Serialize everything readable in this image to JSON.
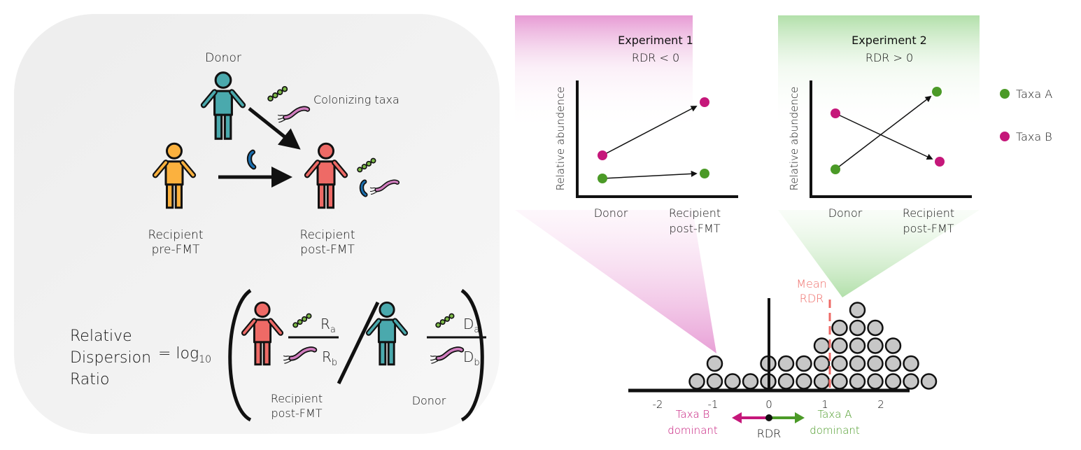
{
  "panel_left": {
    "donor_label": "Donor",
    "colonizing_label": "Colonizing taxa",
    "recipient_pre_line1": "Recipient",
    "recipient_pre_line2": "pre-FMT",
    "recipient_post_line1": "Recipient",
    "recipient_post_line2": "post-FMT"
  },
  "formula": {
    "lhs_line1": "Relative",
    "lhs_line2": "Dispersion",
    "lhs_line3": "Ratio",
    "equals_log": "= log",
    "log_base": "10",
    "r_a_letter": "R",
    "r_a_sub": "a",
    "r_b_letter": "R",
    "r_b_sub": "b",
    "d_a_letter": "D",
    "d_a_sub": "a",
    "d_b_letter": "D",
    "d_b_sub": "b",
    "recipient_line1": "Recipient",
    "recipient_line2": "post-FMT",
    "donor_label": "Donor"
  },
  "experiments": [
    {
      "title": "Experiment 1",
      "subtitle": "RDR < 0",
      "ylabel": "Relative abundence",
      "x_label_1": "Donor",
      "x_label_2_line1": "Recipient",
      "x_label_2_line2": "post-FMT",
      "color": "#e48fcf"
    },
    {
      "title": "Experiment 2",
      "subtitle": "RDR > 0",
      "ylabel": "Relative abundence",
      "x_label_1": "Donor",
      "x_label_2_line1": "Recipient",
      "x_label_2_line2": "post-FMT",
      "color": "#a9dca0"
    }
  ],
  "legend": {
    "taxa_a": "Taxa A",
    "taxa_b": "Taxa B",
    "taxa_a_color": "#4b9a27",
    "taxa_b_color": "#c5177a"
  },
  "rdr_axis": {
    "ticks": [
      "-2",
      "-1",
      "0",
      "1",
      "2"
    ],
    "mean_label_line1": "Mean",
    "mean_label_line2": "RDR",
    "mean_color": "#ee6a66",
    "axis_label": "RDR",
    "taxa_b_line1": "Taxa B",
    "taxa_b_line2": "dominant",
    "taxa_a_line1": "Taxa A",
    "taxa_a_line2": "dominant",
    "column_counts": [
      1,
      2,
      1,
      1,
      2,
      2,
      2,
      3,
      4,
      5,
      4,
      3,
      2,
      1
    ]
  },
  "colors": {
    "donor": "#4aa9ad",
    "recipient_pre": "#fbb13e",
    "recipient_post": "#ee6a66",
    "taxa_green": "#7dbb48",
    "taxa_pink": "#d07dbe",
    "taxa_blue": "#1a6fb0",
    "dot_gray": "#c7c7c7"
  }
}
